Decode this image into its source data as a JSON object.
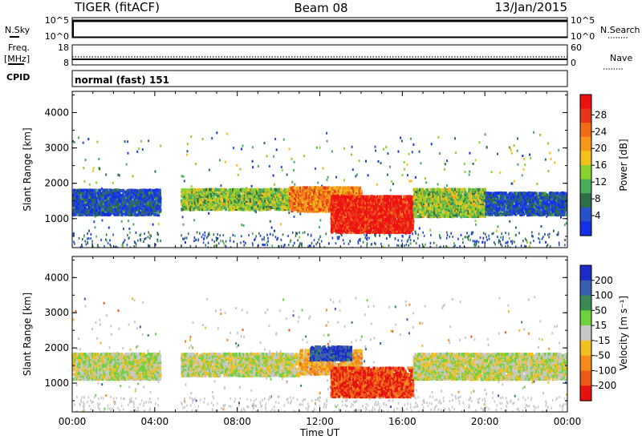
{
  "header": {
    "station": "TIGER (fitACF)",
    "beam": "Beam 08",
    "date": "13/Jan/2015"
  },
  "panels": {
    "nsky": {
      "label": "N.Sky",
      "left_ticks": [
        "10^5",
        "10^0"
      ],
      "right_ticks": [
        "10^5",
        "10^0"
      ],
      "right_label": "N.Search"
    },
    "freq": {
      "label_line1": "Freq.",
      "label_line2": "[MHz]",
      "left_ticks": [
        "18",
        "8"
      ],
      "right_ticks": [
        "60",
        "0"
      ],
      "right_label": "Nave"
    },
    "cpid": {
      "label": "CPID",
      "text": "normal (fast) 151"
    }
  },
  "chart_data": [
    {
      "type": "heatmap",
      "name": "power",
      "ylabel": "Slant Range [km]",
      "ylim": [
        180,
        4600
      ],
      "yticks": [
        "1000",
        "2000",
        "3000",
        "4000"
      ],
      "xlabel": "",
      "xticks": [],
      "colorbar": {
        "label": "Power [dB]",
        "ticks": [
          "4",
          "8",
          "12",
          "16",
          "20",
          "24",
          "28"
        ],
        "colors": [
          "#1430e6",
          "#2850c8",
          "#2d6e46",
          "#4cab5c",
          "#8bd12e",
          "#f2c21a",
          "#f7981b",
          "#f36a17",
          "#e6351a",
          "#ee1010"
        ]
      },
      "bands": [
        {
          "t0": 0.0,
          "t1": 4.25,
          "r0": 1150,
          "r1": 1880,
          "value": 6
        },
        {
          "t0": 5.25,
          "t1": 10.5,
          "r0": 1300,
          "r1": 1900,
          "value": 14
        },
        {
          "t0": 10.5,
          "t1": 14.0,
          "r0": 1250,
          "r1": 1950,
          "value": 22
        },
        {
          "t0": 12.5,
          "t1": 16.5,
          "r0": 650,
          "r1": 1700,
          "value": 28
        },
        {
          "t0": 16.5,
          "t1": 20.0,
          "r0": 1100,
          "r1": 1900,
          "value": 14
        },
        {
          "t0": 20.0,
          "t1": 24.0,
          "r0": 1150,
          "r1": 1800,
          "value": 6
        }
      ]
    },
    {
      "type": "heatmap",
      "name": "velocity",
      "ylabel": "Slant Range [km]",
      "ylim": [
        180,
        4600
      ],
      "yticks": [
        "1000",
        "2000",
        "3000",
        "4000"
      ],
      "xlabel": "Time UT",
      "xticks": [
        "00:00",
        "04:00",
        "08:00",
        "12:00",
        "16:00",
        "20:00",
        "00:00"
      ],
      "colorbar": {
        "label": "Velocity [m s⁻¹]",
        "ticks": [
          "200",
          "100",
          "50",
          "15",
          "-15",
          "-50",
          "-100",
          "-200"
        ],
        "colors": [
          "#1c2cc8",
          "#3a5fb0",
          "#3e8a55",
          "#6fd040",
          "#c8c8c8",
          "#f0bf20",
          "#f58b1a",
          "#ee5a18",
          "#e61212"
        ]
      },
      "bands": [
        {
          "t0": 0.0,
          "t1": 4.25,
          "r0": 1150,
          "r1": 1900,
          "value": 0
        },
        {
          "t0": 5.25,
          "t1": 11.0,
          "r0": 1250,
          "r1": 1900,
          "value": 0
        },
        {
          "t0": 11.0,
          "t1": 14.0,
          "r0": 1300,
          "r1": 2000,
          "value": -60
        },
        {
          "t0": 12.5,
          "t1": 16.5,
          "r0": 650,
          "r1": 1500,
          "value": -150
        },
        {
          "t0": 11.5,
          "t1": 13.5,
          "r0": 1700,
          "r1": 2100,
          "value": 150
        },
        {
          "t0": 16.5,
          "t1": 24.0,
          "r0": 1150,
          "r1": 1900,
          "value": 0
        }
      ]
    }
  ]
}
